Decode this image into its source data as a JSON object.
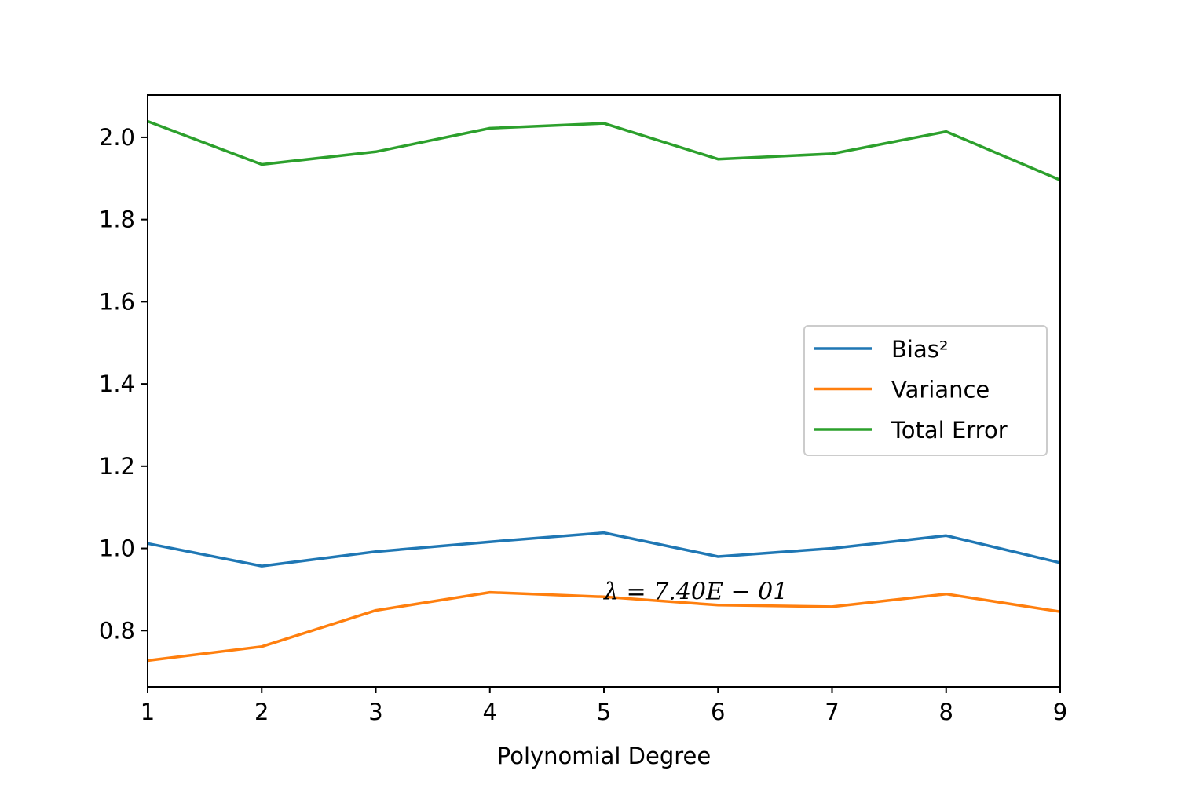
{
  "chart_data": {
    "type": "line",
    "x": [
      1,
      2,
      3,
      4,
      5,
      6,
      7,
      8,
      9
    ],
    "series": [
      {
        "name": "Bias²",
        "color": "#1f77b4",
        "values": [
          1.012,
          0.957,
          0.992,
          1.016,
          1.038,
          0.98,
          1.0,
          1.031,
          0.965
        ]
      },
      {
        "name": "Variance",
        "color": "#ff7f0e",
        "values": [
          0.727,
          0.761,
          0.849,
          0.893,
          0.882,
          0.862,
          0.858,
          0.889,
          0.846
        ]
      },
      {
        "name": "Total Error",
        "color": "#2ca02c",
        "values": [
          2.039,
          1.934,
          1.965,
          2.022,
          2.034,
          1.947,
          1.96,
          2.014,
          1.896
        ]
      }
    ],
    "xlabel": "Polynomial Degree",
    "ylabel": "",
    "xlim": [
      1,
      9
    ],
    "ylim": [
      0.663,
      2.103
    ],
    "xticks": [
      "1",
      "2",
      "3",
      "4",
      "5",
      "6",
      "7",
      "8",
      "9"
    ],
    "yticks": [
      "0.8",
      "1.0",
      "1.2",
      "1.4",
      "1.6",
      "1.8",
      "2.0"
    ],
    "annotation": {
      "text": "λ = 7.40E − 01",
      "x": 5,
      "y": 0.88
    },
    "legend_position": "center-right",
    "grid": false
  }
}
